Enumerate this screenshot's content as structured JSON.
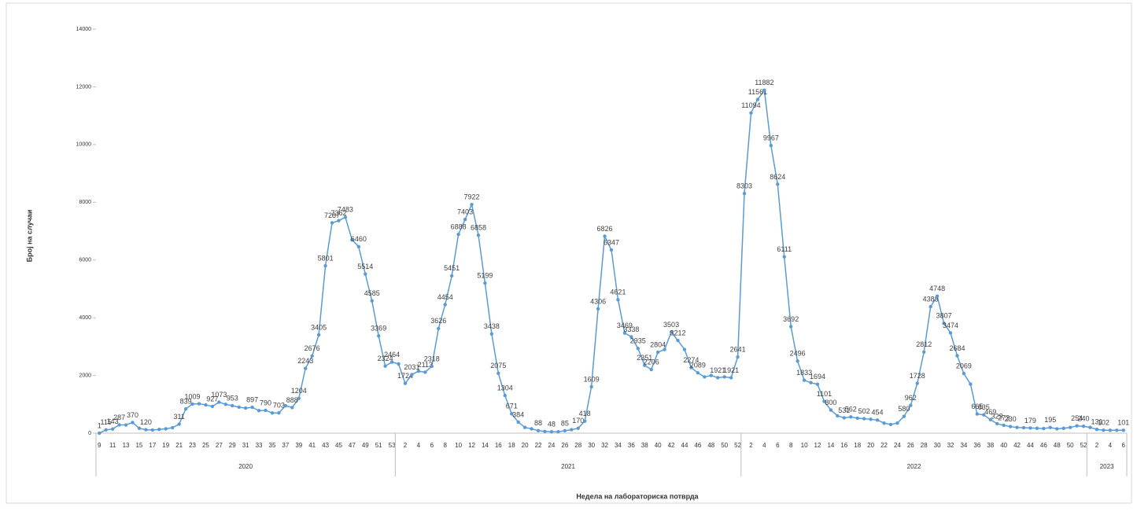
{
  "chart_data": {
    "type": "line",
    "y_label": "Број на случаи",
    "x_label": "Недела на лабораториска потврда",
    "color": "#5b9bd5",
    "ylim": [
      0,
      14000
    ],
    "yticks": [
      0,
      2000,
      4000,
      6000,
      8000,
      10000,
      12000,
      14000
    ],
    "groups": [
      {
        "label": "2020",
        "categories": [
          "9",
          null,
          "11",
          null,
          "13",
          null,
          "15",
          null,
          "17",
          null,
          "19",
          null,
          "21",
          null,
          "23",
          null,
          "25",
          null,
          "27",
          null,
          "29",
          null,
          "31",
          null,
          "33",
          null,
          "35",
          null,
          "37",
          null,
          "39",
          null,
          "41",
          null,
          "43",
          null,
          "45",
          null,
          "47",
          null,
          "49",
          null,
          "51",
          null,
          "53"
        ],
        "values": [
          1,
          115,
          143,
          287,
          285,
          370,
          170,
          120,
          110,
          130,
          150,
          190,
          311,
          839,
          1009,
          1020,
          980,
          927,
          1073,
          1000,
          953,
          900,
          870,
          897,
          780,
          790,
          700,
          703,
          950,
          888,
          1204,
          2243,
          2676,
          3405,
          5801,
          7287,
          7362,
          7483,
          6700,
          6460,
          5514,
          4585,
          3369,
          2324,
          2464
        ],
        "value_labels": [
          "1",
          "115",
          "143",
          "287",
          null,
          "370",
          null,
          "120",
          null,
          null,
          null,
          null,
          "311",
          "839",
          "1009",
          null,
          null,
          "927",
          "1073",
          null,
          "953",
          null,
          null,
          "897",
          null,
          "790",
          null,
          "703",
          null,
          "888",
          "1204",
          "2243",
          "2676",
          "3405",
          "5801",
          "7287",
          "7362",
          "7483",
          null,
          "6460",
          "5514",
          "4585",
          "3369",
          "2324",
          "2464"
        ]
      },
      {
        "label": "2021",
        "categories": [
          null,
          "2",
          null,
          "4",
          null,
          "6",
          null,
          "8",
          null,
          "10",
          null,
          "12",
          null,
          "14",
          null,
          "16",
          null,
          "18",
          null,
          "20",
          null,
          "22",
          null,
          "24",
          null,
          "26",
          null,
          "28",
          null,
          "30",
          null,
          "32",
          null,
          "34",
          null,
          "36",
          null,
          "38",
          null,
          "40",
          null,
          "42",
          null,
          "44",
          null,
          "46",
          null,
          "48",
          null,
          "50",
          null,
          "52"
        ],
        "values": [
          2400,
          1724,
          2031,
          2150,
          2113,
          2318,
          3626,
          4454,
          5451,
          6888,
          7403,
          7922,
          6858,
          5199,
          3438,
          2075,
          1304,
          671,
          384,
          200,
          150,
          88,
          60,
          48,
          50,
          85,
          120,
          170,
          418,
          1609,
          4306,
          6826,
          6347,
          4621,
          3469,
          3338,
          2935,
          2351,
          2206,
          2804,
          2900,
          3503,
          3212,
          2900,
          2274,
          2089,
          1950,
          2000,
          1921,
          1950,
          1921,
          2641
        ],
        "value_labels": [
          null,
          "1724",
          "2031",
          null,
          "2113",
          "2318",
          "3626",
          "4454",
          "5451",
          "6888",
          "7403",
          "7922",
          "6858",
          "5199",
          "3438",
          "2075",
          "1304",
          "671",
          "384",
          null,
          null,
          "88",
          null,
          "48",
          null,
          "85",
          null,
          "170",
          "418",
          "1609",
          "4306",
          "6826",
          "6347",
          "4621",
          "3469",
          "3338",
          "2935",
          "2351",
          "2206",
          "2804",
          null,
          "3503",
          "3212",
          null,
          "2274",
          "2089",
          null,
          null,
          "1921",
          null,
          "1921",
          "2641"
        ]
      },
      {
        "label": "2022",
        "categories": [
          null,
          "2",
          null,
          "4",
          null,
          "6",
          null,
          "8",
          null,
          "10",
          null,
          "12",
          null,
          "14",
          null,
          "16",
          null,
          "18",
          null,
          "20",
          null,
          "22",
          null,
          "24",
          null,
          "26",
          null,
          "28",
          null,
          "30",
          null,
          "32",
          null,
          "34",
          null,
          "36",
          null,
          "38",
          null,
          "40",
          null,
          "42",
          null,
          "44",
          null,
          "46",
          null,
          "48",
          null,
          "50",
          null,
          "52"
        ],
        "values": [
          8303,
          11094,
          11561,
          11882,
          9967,
          8624,
          6111,
          3692,
          2496,
          1833,
          1750,
          1694,
          1101,
          800,
          600,
          531,
          562,
          520,
          502,
          480,
          454,
          350,
          300,
          350,
          580,
          962,
          1728,
          2812,
          4383,
          4748,
          3807,
          3474,
          2684,
          2069,
          1700,
          665,
          635,
          469,
          329,
          273,
          230,
          200,
          190,
          179,
          170,
          160,
          195,
          150,
          170,
          200,
          254,
          240
        ],
        "value_labels": [
          "8303",
          "11094",
          "11561",
          "11882",
          "9967",
          "8624",
          "6111",
          "3692",
          "2496",
          "1833",
          null,
          "1694",
          "1101",
          "800",
          null,
          "531",
          "562",
          null,
          "502",
          null,
          "454",
          null,
          null,
          null,
          "580",
          "962",
          "1728",
          "2812",
          "4383",
          "4748",
          "3807",
          "3474",
          "2684",
          "2069",
          null,
          "665",
          "635",
          "469",
          "329",
          "273",
          "230",
          null,
          null,
          "179",
          null,
          null,
          "195",
          null,
          null,
          null,
          "254",
          "240"
        ]
      },
      {
        "label": "2023",
        "categories": [
          null,
          "2",
          null,
          "4",
          null,
          "6"
        ],
        "values": [
          200,
          131,
          102,
          101,
          101,
          101
        ],
        "value_labels": [
          null,
          "131",
          "102",
          null,
          null,
          "101"
        ]
      }
    ]
  }
}
